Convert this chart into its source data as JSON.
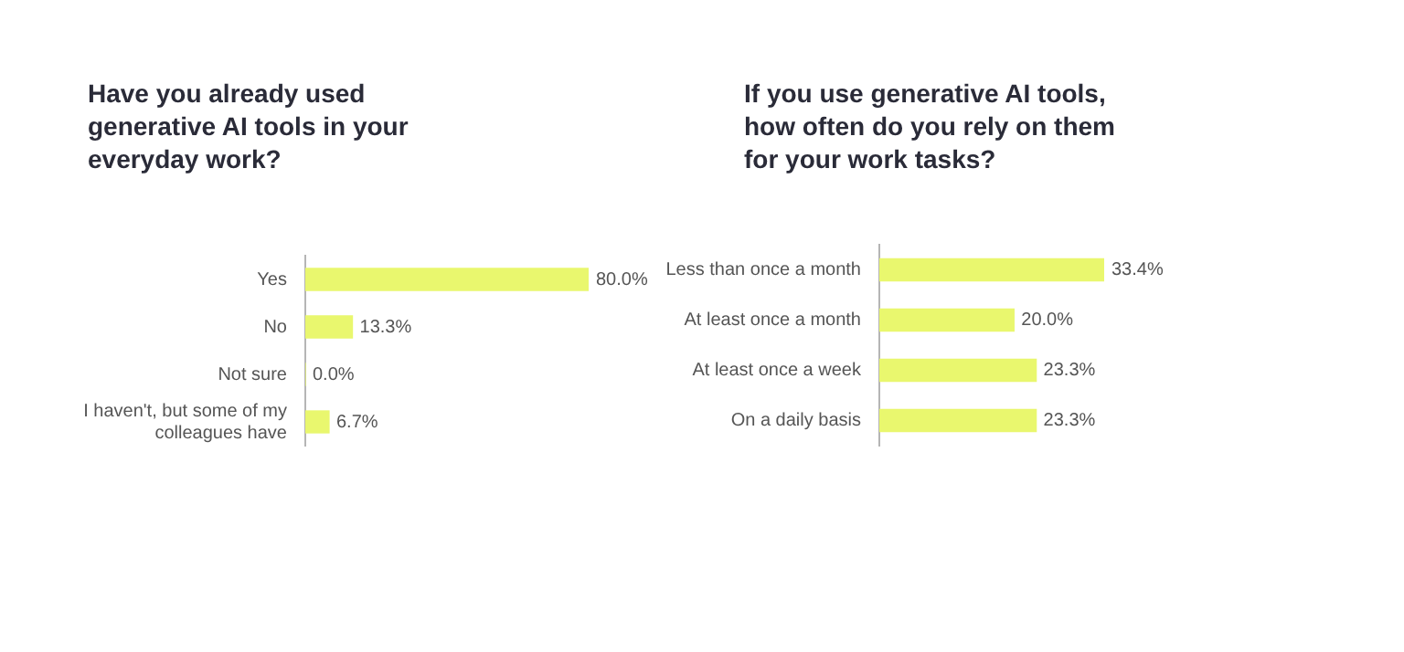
{
  "chart_data": [
    {
      "type": "bar",
      "orientation": "horizontal",
      "title": "Have you already used generative AI tools in your everyday work?",
      "categories": [
        "Yes",
        "No",
        "Not sure",
        "I haven't, but some of my colleagues have"
      ],
      "values": [
        80.0,
        13.3,
        0.0,
        6.7
      ],
      "value_labels": [
        "80.0%",
        "13.3%",
        "0.0%",
        "6.7%"
      ],
      "color": "#e9f76e",
      "tick_labels": "y",
      "grid": false,
      "legend": false
    },
    {
      "type": "bar",
      "orientation": "horizontal",
      "title": "If you use generative AI tools, how often do you rely on them for your work tasks?",
      "categories": [
        "Less than once a month",
        "At least once a month",
        "At least once a week",
        "On a daily basis"
      ],
      "values": [
        33.4,
        20.0,
        23.3,
        23.3
      ],
      "value_labels": [
        "33.4%",
        "20.0%",
        "23.3%",
        "23.3%"
      ],
      "color": "#e9f76e",
      "tick_labels": "y",
      "grid": false,
      "legend": false
    }
  ]
}
